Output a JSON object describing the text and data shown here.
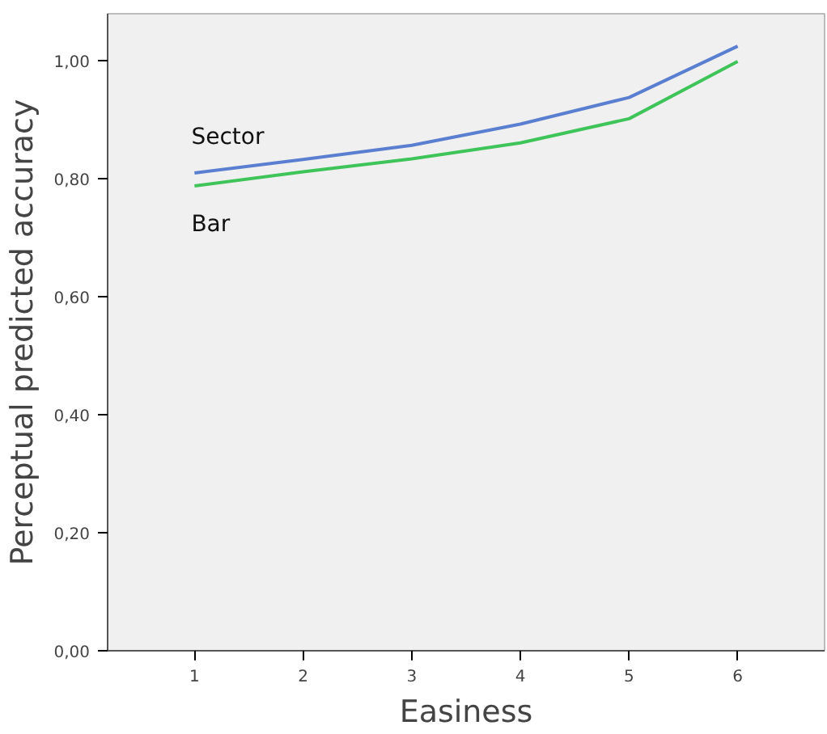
{
  "chart_data": {
    "type": "line",
    "xlabel": "Easiness",
    "ylabel": "Perceptual predicted accuracy",
    "x": [
      1,
      2,
      3,
      4,
      5,
      6
    ],
    "series": [
      {
        "name": "Sector",
        "color": "#5b7fd0",
        "values": [
          0.81,
          0.833,
          0.857,
          0.893,
          0.938,
          1.025
        ]
      },
      {
        "name": "Bar",
        "color": "#3fc45a",
        "values": [
          0.788,
          0.812,
          0.834,
          0.861,
          0.902,
          0.999
        ]
      }
    ],
    "xlim": [
      0.2,
      6.8
    ],
    "ylim": [
      0,
      1.08
    ],
    "xticks": [
      1,
      2,
      3,
      4,
      5,
      6
    ],
    "yticks": [
      {
        "value": 0,
        "label": "0,00"
      },
      {
        "value": 0.2,
        "label": "0,20"
      },
      {
        "value": 0.4,
        "label": "0,40"
      },
      {
        "value": 0.6,
        "label": "0,60"
      },
      {
        "value": 0.8,
        "label": "0,80"
      },
      {
        "value": 1.0,
        "label": "1,00"
      }
    ],
    "grid": false,
    "marker": "none",
    "line_style": "solid"
  }
}
